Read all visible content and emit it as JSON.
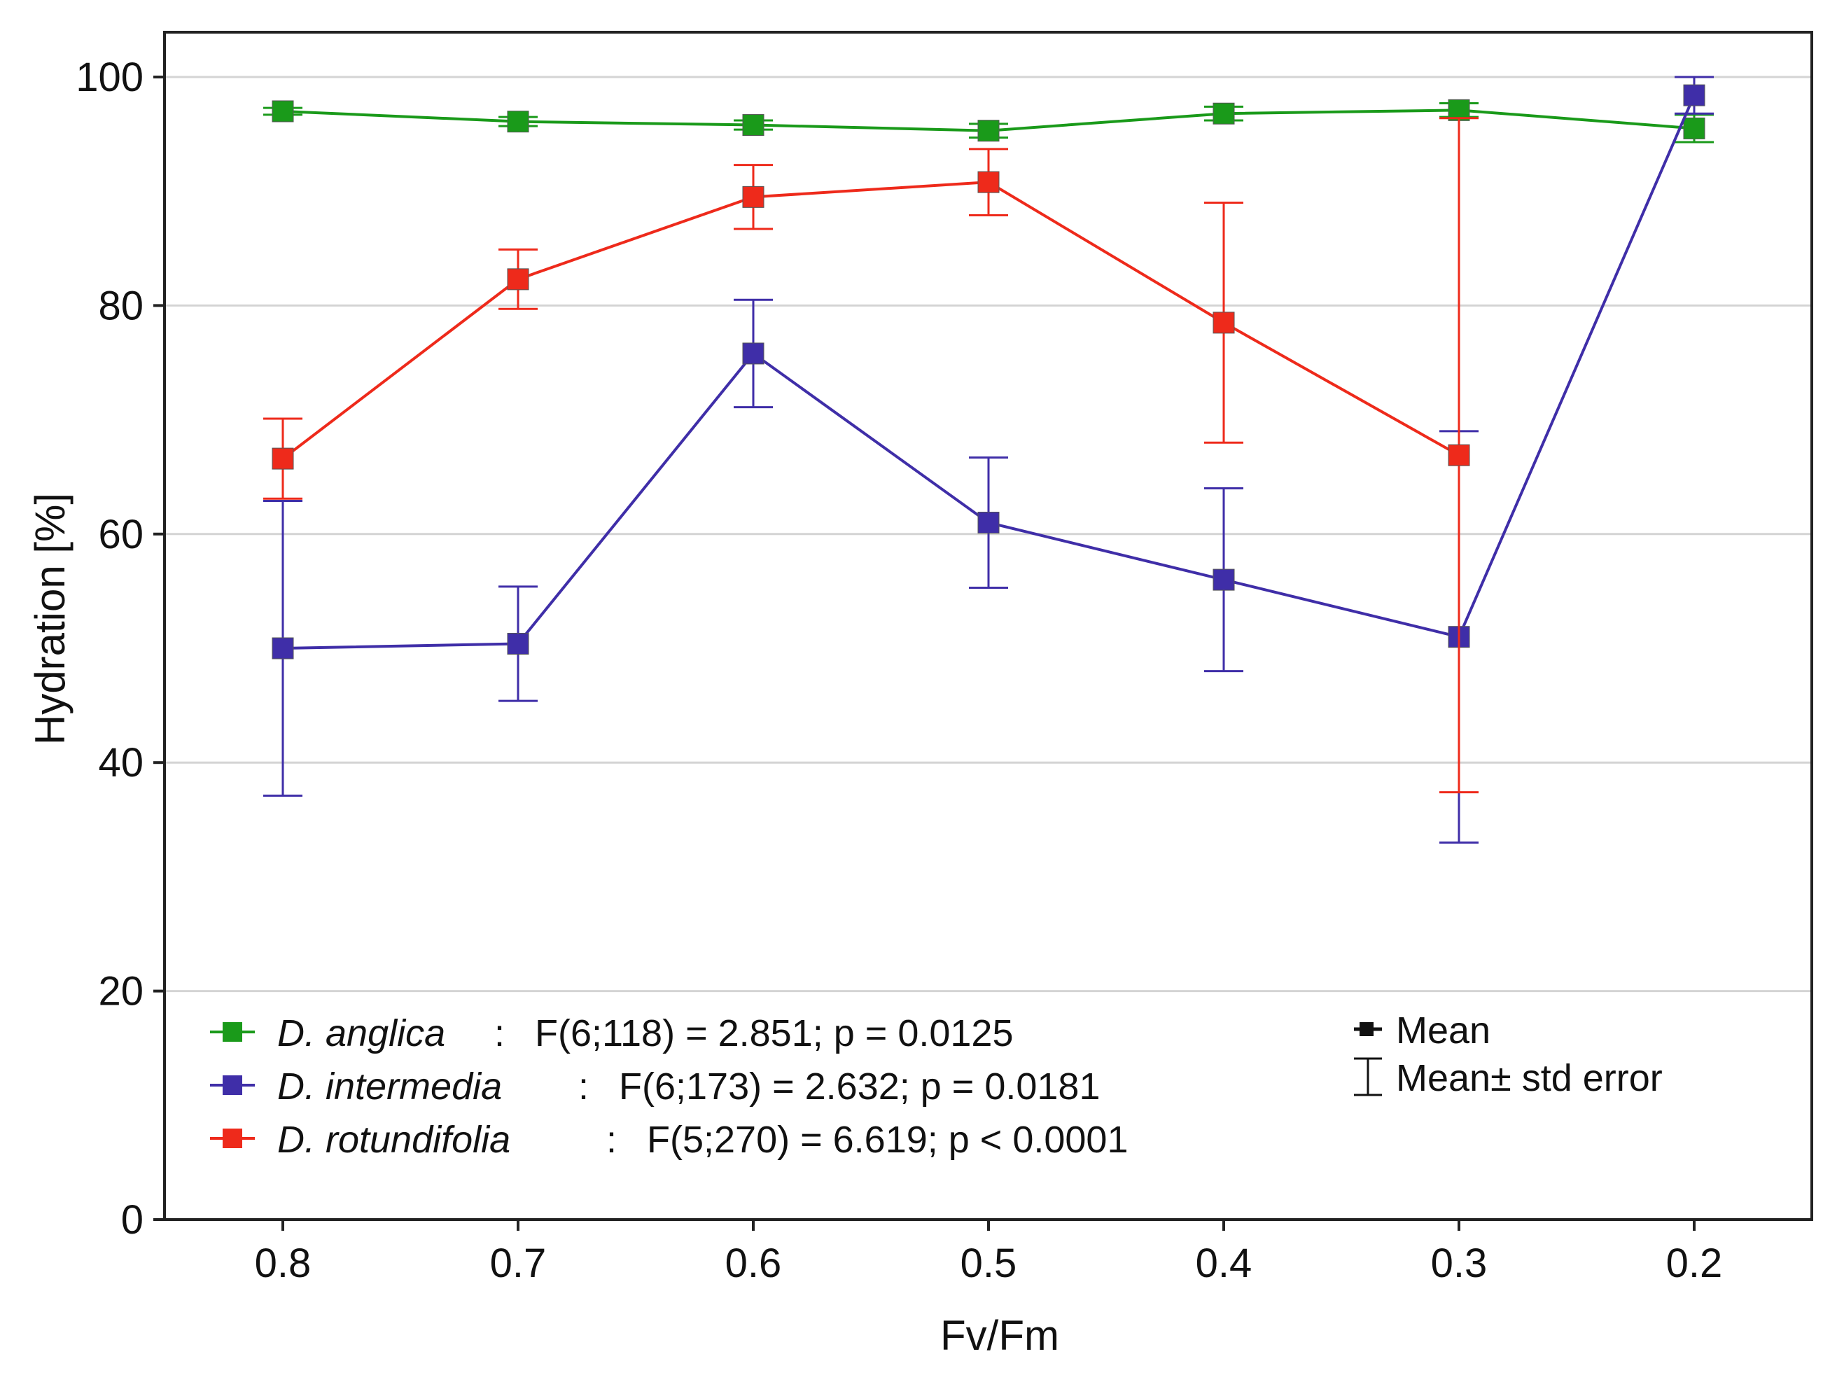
{
  "chart_data": {
    "type": "line",
    "title": "",
    "xlabel": "Fv/Fm",
    "ylabel": "Hydration [%]",
    "categories": [
      "0.8",
      "0.7",
      "0.6",
      "0.5",
      "0.4",
      "0.3",
      "0.2"
    ],
    "ylim": [
      0,
      100
    ],
    "yticks": [
      "0",
      "20",
      "40",
      "60",
      "80",
      "100"
    ],
    "grid": "horizontal",
    "series": [
      {
        "name": "D. anglica",
        "stat": "F(6;118) = 2.851; p = 0.0125",
        "color": "#1a9a1a",
        "values": [
          97.0,
          96.1,
          95.8,
          95.3,
          96.8,
          97.1,
          95.5
        ],
        "errors": [
          0.3,
          0.4,
          0.4,
          0.6,
          0.6,
          0.6,
          1.2
        ]
      },
      {
        "name": "D. intermedia",
        "stat": "F(6;173) = 2.632; p = 0.0181",
        "color": "#3f2ea8",
        "values": [
          50.0,
          50.4,
          75.8,
          61.0,
          56.0,
          51.0,
          98.4
        ],
        "errors": [
          12.9,
          5.0,
          4.7,
          5.7,
          8.0,
          18.0,
          1.6
        ]
      },
      {
        "name": "D. rotundifolia",
        "stat": "F(5;270) = 6.619; p < 0.0001",
        "color": "#ee2a1b",
        "values": [
          66.6,
          82.3,
          89.5,
          90.8,
          78.5,
          66.9,
          null
        ],
        "errors": [
          3.5,
          2.6,
          2.8,
          2.9,
          10.5,
          29.5,
          null
        ]
      }
    ],
    "legend_position": "bottom-left",
    "stats_legend": {
      "mean_label": "Mean",
      "error_label": "Mean± std error"
    }
  }
}
